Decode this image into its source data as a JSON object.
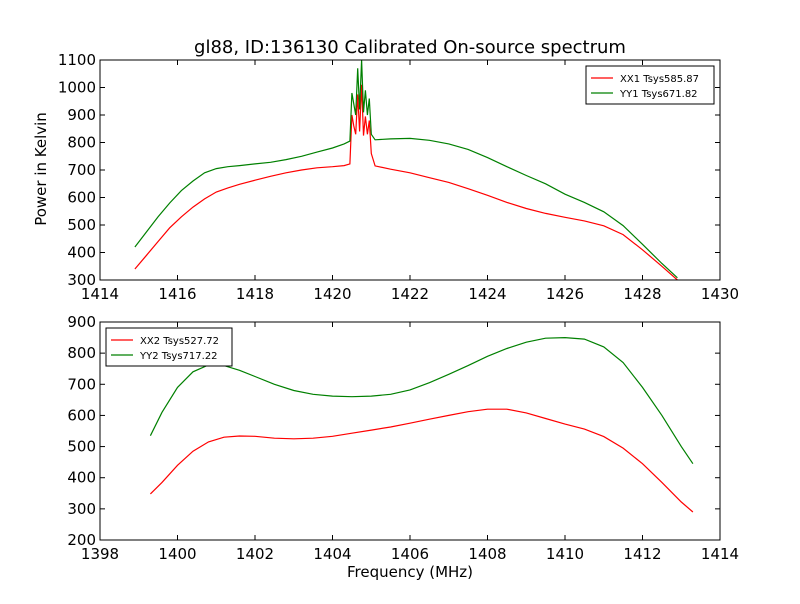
{
  "figure": {
    "title": "gl88, ID:136130 Calibrated On-source spectrum",
    "xlabel": "Frequency (MHz)",
    "ylabel": "Power in Kelvin"
  },
  "chart_data": [
    {
      "type": "line",
      "title": "gl88, ID:136130 Calibrated On-source spectrum",
      "ylabel": "Power in Kelvin",
      "xlabel": "",
      "xlim": [
        1414,
        1430
      ],
      "ylim": [
        300,
        1100
      ],
      "xticks": [
        1414,
        1416,
        1418,
        1420,
        1422,
        1424,
        1426,
        1428,
        1430
      ],
      "yticks": [
        300,
        400,
        500,
        600,
        700,
        800,
        900,
        1000,
        1100
      ],
      "grid": false,
      "legend_position": "upper right",
      "series": [
        {
          "name": "XX1 Tsys585.87",
          "color": "#ff0000",
          "x": [
            1414.9,
            1415.2,
            1415.5,
            1415.8,
            1416.1,
            1416.4,
            1416.7,
            1417.0,
            1417.3,
            1417.6,
            1418.0,
            1418.4,
            1418.8,
            1419.2,
            1419.6,
            1420.0,
            1420.3,
            1420.45,
            1420.5,
            1420.55,
            1420.6,
            1420.65,
            1420.7,
            1420.75,
            1420.8,
            1420.85,
            1420.9,
            1420.95,
            1421.0,
            1421.1,
            1421.5,
            1422.0,
            1422.5,
            1423.0,
            1423.5,
            1424.0,
            1424.5,
            1425.0,
            1425.5,
            1426.0,
            1426.5,
            1427.0,
            1427.5,
            1428.0,
            1428.5,
            1428.9
          ],
          "values": [
            340,
            390,
            440,
            490,
            530,
            565,
            595,
            620,
            635,
            648,
            663,
            677,
            690,
            700,
            708,
            712,
            716,
            722,
            900,
            860,
            830,
            975,
            840,
            1010,
            825,
            895,
            830,
            880,
            760,
            715,
            703,
            690,
            672,
            655,
            632,
            608,
            582,
            560,
            542,
            528,
            515,
            497,
            465,
            410,
            350,
            300
          ]
        },
        {
          "name": "YY1 Tsys671.82",
          "color": "#008000",
          "x": [
            1414.9,
            1415.2,
            1415.5,
            1415.8,
            1416.1,
            1416.4,
            1416.7,
            1417.0,
            1417.3,
            1417.6,
            1418.0,
            1418.4,
            1418.8,
            1419.2,
            1419.6,
            1420.0,
            1420.3,
            1420.45,
            1420.5,
            1420.55,
            1420.6,
            1420.65,
            1420.7,
            1420.75,
            1420.8,
            1420.85,
            1420.9,
            1420.95,
            1421.0,
            1421.1,
            1421.5,
            1422.0,
            1422.5,
            1423.0,
            1423.5,
            1424.0,
            1424.5,
            1425.0,
            1425.5,
            1426.0,
            1426.5,
            1427.0,
            1427.5,
            1428.0,
            1428.5,
            1428.9
          ],
          "values": [
            420,
            475,
            530,
            580,
            625,
            660,
            690,
            705,
            712,
            716,
            722,
            728,
            738,
            750,
            765,
            780,
            795,
            805,
            980,
            940,
            900,
            1070,
            920,
            1100,
            910,
            990,
            900,
            960,
            830,
            810,
            813,
            815,
            808,
            795,
            775,
            745,
            712,
            680,
            650,
            612,
            582,
            548,
            498,
            430,
            360,
            308
          ]
        }
      ]
    },
    {
      "type": "line",
      "title": "",
      "xlabel": "Frequency (MHz)",
      "ylabel": "",
      "xlim": [
        1398,
        1414
      ],
      "ylim": [
        200,
        900
      ],
      "xticks": [
        1398,
        1400,
        1402,
        1404,
        1406,
        1408,
        1410,
        1412,
        1414
      ],
      "yticks": [
        200,
        300,
        400,
        500,
        600,
        700,
        800,
        900
      ],
      "grid": false,
      "legend_position": "upper left",
      "series": [
        {
          "name": "XX2 Tsys527.72",
          "color": "#ff0000",
          "x": [
            1399.3,
            1399.6,
            1400.0,
            1400.4,
            1400.8,
            1401.2,
            1401.6,
            1402.0,
            1402.5,
            1403.0,
            1403.5,
            1404.0,
            1404.5,
            1405.0,
            1405.5,
            1406.0,
            1406.5,
            1407.0,
            1407.5,
            1408.0,
            1408.5,
            1409.0,
            1409.5,
            1410.0,
            1410.5,
            1411.0,
            1411.5,
            1412.0,
            1412.5,
            1413.0,
            1413.3
          ],
          "values": [
            348,
            385,
            440,
            485,
            515,
            530,
            534,
            533,
            527,
            525,
            527,
            533,
            543,
            553,
            563,
            575,
            588,
            600,
            612,
            620,
            620,
            608,
            590,
            572,
            556,
            532,
            495,
            445,
            385,
            322,
            290
          ]
        },
        {
          "name": "YY2 Tsys717.22",
          "color": "#008000",
          "x": [
            1399.3,
            1399.6,
            1400.0,
            1400.4,
            1400.8,
            1401.2,
            1401.6,
            1402.0,
            1402.5,
            1403.0,
            1403.5,
            1404.0,
            1404.5,
            1405.0,
            1405.5,
            1406.0,
            1406.5,
            1407.0,
            1407.5,
            1408.0,
            1408.5,
            1409.0,
            1409.5,
            1410.0,
            1410.5,
            1411.0,
            1411.5,
            1412.0,
            1412.5,
            1413.0,
            1413.3
          ],
          "values": [
            535,
            610,
            690,
            740,
            762,
            760,
            745,
            725,
            700,
            680,
            668,
            662,
            660,
            662,
            668,
            682,
            705,
            732,
            760,
            790,
            815,
            835,
            848,
            850,
            845,
            820,
            770,
            690,
            600,
            500,
            445
          ]
        }
      ]
    }
  ]
}
